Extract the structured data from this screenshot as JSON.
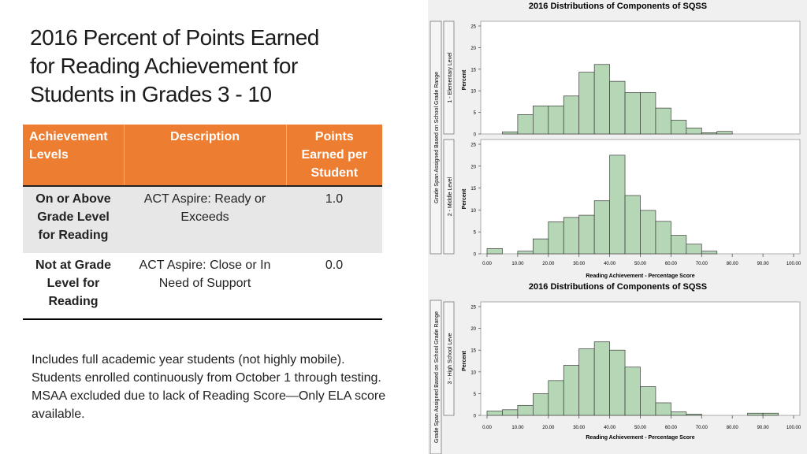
{
  "slide": {
    "title_lines": [
      "2016 Percent of Points Earned",
      "for Reading Achievement for",
      "Students in Grades 3 - 10"
    ],
    "table": {
      "headers": [
        "Achievement Levels",
        "Description",
        "Points Earned per Student"
      ],
      "rows": [
        {
          "level": "On or Above Grade Level for Reading",
          "description": "ACT Aspire: Ready or Exceeds",
          "points": "1.0"
        },
        {
          "level": "Not at Grade Level for Reading",
          "description": "ACT Aspire: Close or In Need of Support",
          "points": "0.0"
        }
      ]
    },
    "notes": [
      "Includes full academic year students (not highly mobile).",
      "Students enrolled continuously from October 1 through testing.",
      "MSAA excluded due to lack of Reading Score—Only ELA score available."
    ]
  },
  "chart_data": [
    {
      "type": "bar",
      "title": "2016 Distributions of Components of SQSS",
      "xlabel": "Reading Achievement - Percentage Score",
      "ylabel": "Percent",
      "group_label": "Grade Span Assigned Based on School Grade Range",
      "x_ticks": [
        "0.00",
        "10.00",
        "20.00",
        "30.00",
        "40.00",
        "50.00",
        "60.00",
        "70.00",
        "80.00",
        "90.00",
        "100.00"
      ],
      "y_ticks": [
        0,
        5,
        10,
        15,
        20,
        25
      ],
      "xlim": [
        0,
        100
      ],
      "ylim": [
        0,
        25
      ],
      "bar_color": "#b5d7b5",
      "bin_width": 5,
      "panels": [
        {
          "name": "1 - Elementary Level",
          "bins": [
            0,
            5,
            10,
            15,
            20,
            25,
            30,
            35,
            40,
            45,
            50,
            55,
            60,
            65,
            70,
            75,
            80
          ],
          "values": [
            0,
            0.5,
            4.5,
            6.5,
            6.5,
            8.8,
            14.3,
            16.1,
            12.2,
            9.6,
            9.6,
            6.0,
            3.2,
            1.4,
            0.3,
            0.6,
            0
          ]
        },
        {
          "name": "2 - Middle Level",
          "bins": [
            0,
            5,
            10,
            15,
            20,
            25,
            30,
            35,
            40,
            45,
            50,
            55,
            60,
            65,
            70,
            75
          ],
          "values": [
            1.2,
            0,
            0.6,
            3.4,
            7.3,
            8.3,
            8.8,
            12.1,
            22.5,
            13.3,
            9.9,
            7.4,
            4.2,
            2.2,
            0.6,
            0
          ]
        },
        {
          "name": "3 - High School Leve",
          "bins": [
            0,
            5,
            10,
            15,
            20,
            25,
            30,
            35,
            40,
            45,
            50,
            55,
            60,
            65,
            70,
            75,
            80,
            85,
            90,
            95
          ],
          "values": [
            1.0,
            1.3,
            2.3,
            5.0,
            8.0,
            11.5,
            15.3,
            16.9,
            15.0,
            11.1,
            6.6,
            2.9,
            0.8,
            0.3,
            0,
            0,
            0,
            0.5,
            0.5,
            0
          ]
        }
      ]
    }
  ]
}
